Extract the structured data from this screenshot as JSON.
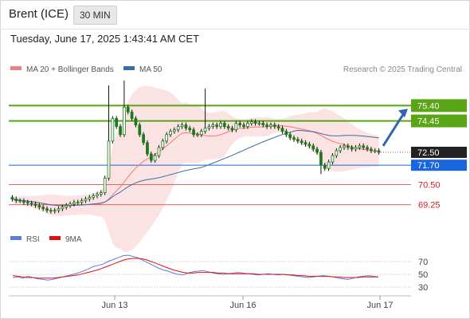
{
  "header": {
    "instrument": "Brent (ICE)",
    "timeframe": "30 MIN",
    "datetime": "Tuesday, June 17, 2025 1:43:41 AM CET"
  },
  "chart_data": [
    {
      "type": "candlestick",
      "title": "Brent (ICE)",
      "legend": [
        {
          "name": "MA 20 + Bollinger Bands",
          "color": "#f08080"
        },
        {
          "name": "MA 50",
          "color": "#3a6ea5"
        }
      ],
      "credit": "Research © 2025 Trading Central",
      "ylim": [
        67.8,
        77.2
      ],
      "x_ticks": [
        "Jun 13",
        "Jun 16",
        "Jun 17"
      ],
      "levels": [
        {
          "value": 75.4,
          "label": "75.40",
          "role": "resistance",
          "color": "#5aa516"
        },
        {
          "value": 74.45,
          "label": "74.45",
          "role": "resistance",
          "color": "#5aa516"
        },
        {
          "value": 72.5,
          "label": "72.50",
          "role": "last price",
          "color": "#222222"
        },
        {
          "value": 71.7,
          "label": "71.70",
          "role": "pivot",
          "color": "#1a66dd"
        },
        {
          "value": 70.5,
          "label": "70.50",
          "role": "support",
          "color": "#e05050"
        },
        {
          "value": 69.25,
          "label": "69.25",
          "role": "support",
          "color": "#e05050"
        }
      ],
      "close_series": [
        69.6,
        69.5,
        69.5,
        69.4,
        69.35,
        69.3,
        69.2,
        69.1,
        69.0,
        68.9,
        68.85,
        68.9,
        69.0,
        69.1,
        69.2,
        69.3,
        69.4,
        69.4,
        69.5,
        69.6,
        69.7,
        69.8,
        69.9,
        70.0,
        70.9,
        73.2,
        74.6,
        74.1,
        73.6,
        75.3,
        75.0,
        74.6,
        74.2,
        73.6,
        73.1,
        72.4,
        72.0,
        72.3,
        72.8,
        73.2,
        73.6,
        73.8,
        73.9,
        74.1,
        74.2,
        74.0,
        73.9,
        73.6,
        73.6,
        73.8,
        74.0,
        74.1,
        74.2,
        74.1,
        74.3,
        74.1,
        74.0,
        73.9,
        74.3,
        74.2,
        74.1,
        74.3,
        74.4,
        74.3,
        74.3,
        74.2,
        74.1,
        74.2,
        74.1,
        74.0,
        73.8,
        73.6,
        73.4,
        73.3,
        73.2,
        73.1,
        73.0,
        72.9,
        72.7,
        72.5,
        71.7,
        71.5,
        71.9,
        72.3,
        72.6,
        72.8,
        72.9,
        72.8,
        72.7,
        72.8,
        72.9,
        72.8,
        72.7,
        72.6,
        72.6,
        72.5
      ],
      "trend_arrow": "up"
    },
    {
      "type": "line",
      "legend": [
        {
          "name": "RSI",
          "color": "#5b7fd8"
        },
        {
          "name": "9MA",
          "color": "#e01010"
        }
      ],
      "ylim": [
        20,
        85
      ],
      "y_ticks": [
        70,
        50,
        30
      ],
      "rsi": [
        45,
        46,
        44,
        47,
        45,
        43,
        42,
        41,
        42,
        44,
        46,
        48,
        50,
        52,
        55,
        58,
        62,
        64,
        66,
        70,
        73,
        76,
        79,
        80,
        78,
        76,
        72,
        68,
        64,
        60,
        57,
        55,
        52,
        50,
        49,
        52,
        54,
        55,
        56,
        54,
        52,
        51,
        50,
        51,
        52,
        53,
        52,
        51,
        50,
        49,
        50,
        51,
        50,
        49,
        50,
        49,
        48,
        47,
        46,
        45,
        46,
        47,
        48,
        47,
        46,
        44,
        43,
        42,
        44,
        46,
        47,
        48,
        47,
        46
      ],
      "ma9": [
        48,
        47,
        46,
        45,
        45,
        44,
        44,
        44,
        44,
        45,
        46,
        47,
        48,
        49,
        51,
        53,
        55,
        57,
        60,
        63,
        66,
        69,
        72,
        74,
        75,
        75,
        74,
        72,
        69,
        66,
        63,
        60,
        57,
        55,
        53,
        52,
        52,
        53,
        53,
        53,
        53,
        52,
        52,
        51,
        51,
        51,
        51,
        51,
        51,
        50,
        50,
        50,
        50,
        50,
        50,
        49,
        49,
        48,
        48,
        47,
        47,
        47,
        47,
        47,
        46,
        46,
        45,
        45,
        45,
        45,
        46,
        46,
        46,
        46
      ]
    }
  ]
}
